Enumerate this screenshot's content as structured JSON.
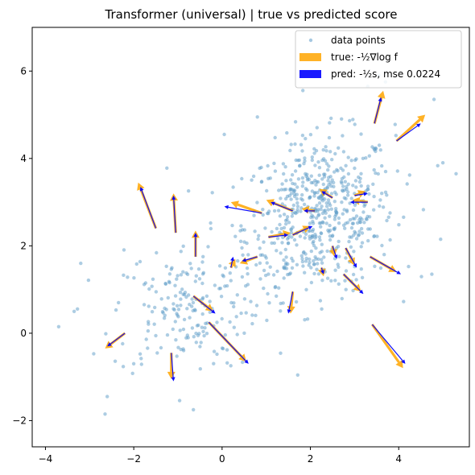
{
  "chart_data": {
    "type": "scatter",
    "title": "Transformer (universal) |  true vs predicted score",
    "xlim": [
      -4.3,
      5.6
    ],
    "ylim": [
      -2.6,
      7.0
    ],
    "xticks": [
      -4,
      -2,
      0,
      2,
      4
    ],
    "yticks": [
      -2,
      0,
      2,
      4,
      6
    ],
    "grid": false,
    "legend_position": "top-right",
    "colors": {
      "points": "#5b9bc8",
      "true": "#ffa500",
      "pred": "#0000ff"
    },
    "series": [
      {
        "name": "data points",
        "kind": "scatter",
        "clusters": [
          {
            "center": [
              2.2,
              2.7
            ],
            "std": [
              0.85,
              0.9
            ],
            "corr": 0.15,
            "count": 600
          },
          {
            "center": [
              -0.8,
              0.6
            ],
            "std": [
              0.85,
              0.75
            ],
            "corr": 0.1,
            "count": 200
          }
        ],
        "notable_points": [
          [
            -3.7,
            0.15
          ],
          [
            -3.35,
            0.5
          ],
          [
            -3.2,
            1.6
          ],
          [
            -2.65,
            -1.85
          ],
          [
            -2.6,
            -1.45
          ],
          [
            -1.25,
            3.78
          ],
          [
            -0.65,
            -1.75
          ],
          [
            0.05,
            4.55
          ],
          [
            0.8,
            4.95
          ],
          [
            3.3,
            5.65
          ],
          [
            3.55,
            5.9
          ],
          [
            3.7,
            5.75
          ],
          [
            4.8,
            5.35
          ],
          [
            5.0,
            3.9
          ],
          [
            5.3,
            3.65
          ],
          [
            4.95,
            2.15
          ],
          [
            4.75,
            1.35
          ]
        ]
      },
      {
        "name": "true: -½∇log f",
        "kind": "arrows",
        "arrows": [
          [
            -1.5,
            2.4,
            -1.9,
            3.45
          ],
          [
            -1.05,
            2.3,
            -1.1,
            3.2
          ],
          [
            -0.6,
            1.75,
            -0.6,
            2.35
          ],
          [
            -1.15,
            -0.45,
            -1.15,
            -1.05
          ],
          [
            -2.2,
            0.0,
            -2.65,
            -0.35
          ],
          [
            -0.65,
            0.85,
            -0.2,
            0.5
          ],
          [
            -0.3,
            0.25,
            0.55,
            -0.65
          ],
          [
            0.2,
            1.5,
            0.3,
            1.7
          ],
          [
            0.8,
            1.75,
            0.4,
            1.6
          ],
          [
            1.05,
            2.2,
            1.55,
            2.3
          ],
          [
            1.6,
            2.25,
            2.0,
            2.45
          ],
          [
            1.6,
            0.95,
            1.55,
            0.45
          ],
          [
            0.9,
            2.75,
            0.2,
            3.0
          ],
          [
            1.6,
            2.8,
            1.0,
            3.05
          ],
          [
            2.1,
            2.8,
            1.8,
            2.85
          ],
          [
            2.5,
            2.0,
            2.55,
            1.75
          ],
          [
            2.5,
            3.1,
            2.2,
            3.3
          ],
          [
            2.25,
            1.5,
            2.3,
            1.3
          ],
          [
            2.8,
            1.95,
            3.0,
            1.55
          ],
          [
            3.0,
            3.15,
            3.25,
            3.25
          ],
          [
            3.3,
            3.0,
            2.95,
            3.05
          ],
          [
            3.35,
            1.75,
            3.95,
            1.4
          ],
          [
            3.4,
            0.2,
            4.1,
            -0.8
          ],
          [
            2.75,
            1.35,
            3.15,
            0.95
          ],
          [
            3.45,
            4.8,
            3.65,
            5.55
          ],
          [
            3.95,
            4.4,
            4.6,
            5.0
          ]
        ]
      },
      {
        "name": "pred: -½s, mse 0.0224",
        "kind": "arrows",
        "arrows": [
          [
            -1.5,
            2.4,
            -1.85,
            3.35
          ],
          [
            -1.05,
            2.3,
            -1.1,
            3.15
          ],
          [
            -0.6,
            1.75,
            -0.6,
            2.3
          ],
          [
            -1.15,
            -0.45,
            -1.1,
            -1.1
          ],
          [
            -2.2,
            0.0,
            -2.6,
            -0.3
          ],
          [
            -0.65,
            0.85,
            -0.15,
            0.45
          ],
          [
            -0.3,
            0.25,
            0.6,
            -0.7
          ],
          [
            0.2,
            1.5,
            0.25,
            1.75
          ],
          [
            0.8,
            1.75,
            0.45,
            1.65
          ],
          [
            1.05,
            2.2,
            1.5,
            2.25
          ],
          [
            1.6,
            2.25,
            2.05,
            2.45
          ],
          [
            1.6,
            0.95,
            1.5,
            0.45
          ],
          [
            0.9,
            2.75,
            0.05,
            2.9
          ],
          [
            1.6,
            2.8,
            1.1,
            3.0
          ],
          [
            2.1,
            2.8,
            1.85,
            2.8
          ],
          [
            2.5,
            2.0,
            2.6,
            1.7
          ],
          [
            2.5,
            3.1,
            2.25,
            3.25
          ],
          [
            2.25,
            1.5,
            2.3,
            1.35
          ],
          [
            2.8,
            1.95,
            3.05,
            1.5
          ],
          [
            3.0,
            3.15,
            3.3,
            3.2
          ],
          [
            3.3,
            3.0,
            2.9,
            3.0
          ],
          [
            3.35,
            1.75,
            4.05,
            1.35
          ],
          [
            3.4,
            0.2,
            4.15,
            -0.7
          ],
          [
            2.75,
            1.35,
            3.2,
            0.9
          ],
          [
            3.45,
            4.8,
            3.6,
            5.4
          ],
          [
            3.95,
            4.4,
            4.5,
            4.8
          ]
        ]
      }
    ],
    "legend": [
      {
        "label": "data points"
      },
      {
        "label": "true: -½∇log f"
      },
      {
        "label": "pred: -½s, mse 0.0224"
      }
    ]
  }
}
